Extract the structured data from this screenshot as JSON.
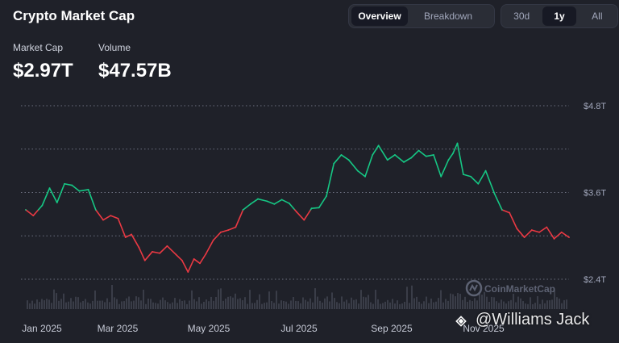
{
  "header": {
    "title": "Crypto Market Cap",
    "view_tabs": [
      {
        "label": "Overview",
        "active": true
      },
      {
        "label": "Breakdown",
        "active": false
      }
    ],
    "range_tabs": [
      {
        "label": "30d",
        "active": false
      },
      {
        "label": "1y",
        "active": true
      },
      {
        "label": "All",
        "active": false
      }
    ]
  },
  "stats": {
    "market_cap_label": "Market Cap",
    "market_cap_value": "$2.97T",
    "volume_label": "Volume",
    "volume_value": "$47.57B"
  },
  "watermark": {
    "text": "CoinMarketCap",
    "icon": "coinmarketcap-logo-icon"
  },
  "credit": {
    "text": "@Williams Jack",
    "icon": "binance-diamond-icon"
  },
  "colors": {
    "background": "#1f2129",
    "up": "#16c784",
    "down": "#ea3943",
    "grid": "#6c7080",
    "volume": "#3a3d48"
  },
  "chart_data": {
    "type": "line",
    "title": "",
    "xlabel": "",
    "ylabel": "",
    "y_ticks": [
      "$4.8T",
      "$3.6T",
      "$2.4T"
    ],
    "y_tick_values": [
      4.8,
      3.6,
      2.4
    ],
    "ylim": [
      2.4,
      4.8
    ],
    "x_ticks": [
      "Jan 2025",
      "Mar 2025",
      "May 2025",
      "Jul 2025",
      "Sep 2025",
      "Nov 2025"
    ],
    "grid": true,
    "baseline": 3.36,
    "color_rule": "green above baseline, red below",
    "series": [
      {
        "dates": [
          "2024-12-20",
          "2024-12-25",
          "2024-12-31",
          "2025-01-05",
          "2025-01-10",
          "2025-01-15",
          "2025-01-20",
          "2025-01-25",
          "2025-01-31",
          "2025-02-05",
          "2025-02-10",
          "2025-02-15",
          "2025-02-20",
          "2025-02-25",
          "2025-03-01",
          "2025-03-06",
          "2025-03-10",
          "2025-03-15",
          "2025-03-20",
          "2025-03-25",
          "2025-03-31",
          "2025-04-04",
          "2025-04-08",
          "2025-04-12",
          "2025-04-16",
          "2025-04-20",
          "2025-04-25",
          "2025-04-30",
          "2025-05-05",
          "2025-05-10",
          "2025-05-15",
          "2025-05-20",
          "2025-05-25",
          "2025-05-31",
          "2025-06-05",
          "2025-06-10",
          "2025-06-15",
          "2025-06-20",
          "2025-06-25",
          "2025-06-30",
          "2025-07-05",
          "2025-07-10",
          "2025-07-15",
          "2025-07-20",
          "2025-07-25",
          "2025-07-31",
          "2025-08-05",
          "2025-08-10",
          "2025-08-14",
          "2025-08-20",
          "2025-08-25",
          "2025-08-31",
          "2025-09-05",
          "2025-09-10",
          "2025-09-15",
          "2025-09-20",
          "2025-09-25",
          "2025-09-30",
          "2025-10-03",
          "2025-10-06",
          "2025-10-10",
          "2025-10-15",
          "2025-10-20",
          "2025-10-25",
          "2025-10-31",
          "2025-11-05",
          "2025-11-10",
          "2025-11-15",
          "2025-11-20",
          "2025-11-25",
          "2025-11-30",
          "2025-12-05",
          "2025-12-10",
          "2025-12-15",
          "2025-12-20"
        ],
        "values": [
          3.36,
          3.28,
          3.42,
          3.66,
          3.46,
          3.72,
          3.7,
          3.62,
          3.64,
          3.36,
          3.22,
          3.28,
          3.24,
          2.98,
          3.02,
          2.84,
          2.66,
          2.78,
          2.76,
          2.86,
          2.74,
          2.66,
          2.5,
          2.68,
          2.62,
          2.75,
          2.94,
          3.05,
          3.08,
          3.12,
          3.36,
          3.44,
          3.51,
          3.48,
          3.44,
          3.5,
          3.45,
          3.33,
          3.22,
          3.38,
          3.39,
          3.55,
          4.0,
          4.12,
          4.05,
          3.9,
          3.82,
          4.12,
          4.25,
          4.05,
          4.12,
          4.02,
          4.08,
          4.18,
          4.1,
          4.12,
          3.82,
          4.05,
          4.14,
          4.28,
          3.85,
          3.82,
          3.72,
          3.9,
          3.58,
          3.36,
          3.32,
          3.1,
          2.98,
          3.08,
          3.05,
          3.12,
          2.96,
          3.05,
          2.98
        ]
      }
    ],
    "volume_bars": "unlabeled volume histogram along the bottom"
  }
}
